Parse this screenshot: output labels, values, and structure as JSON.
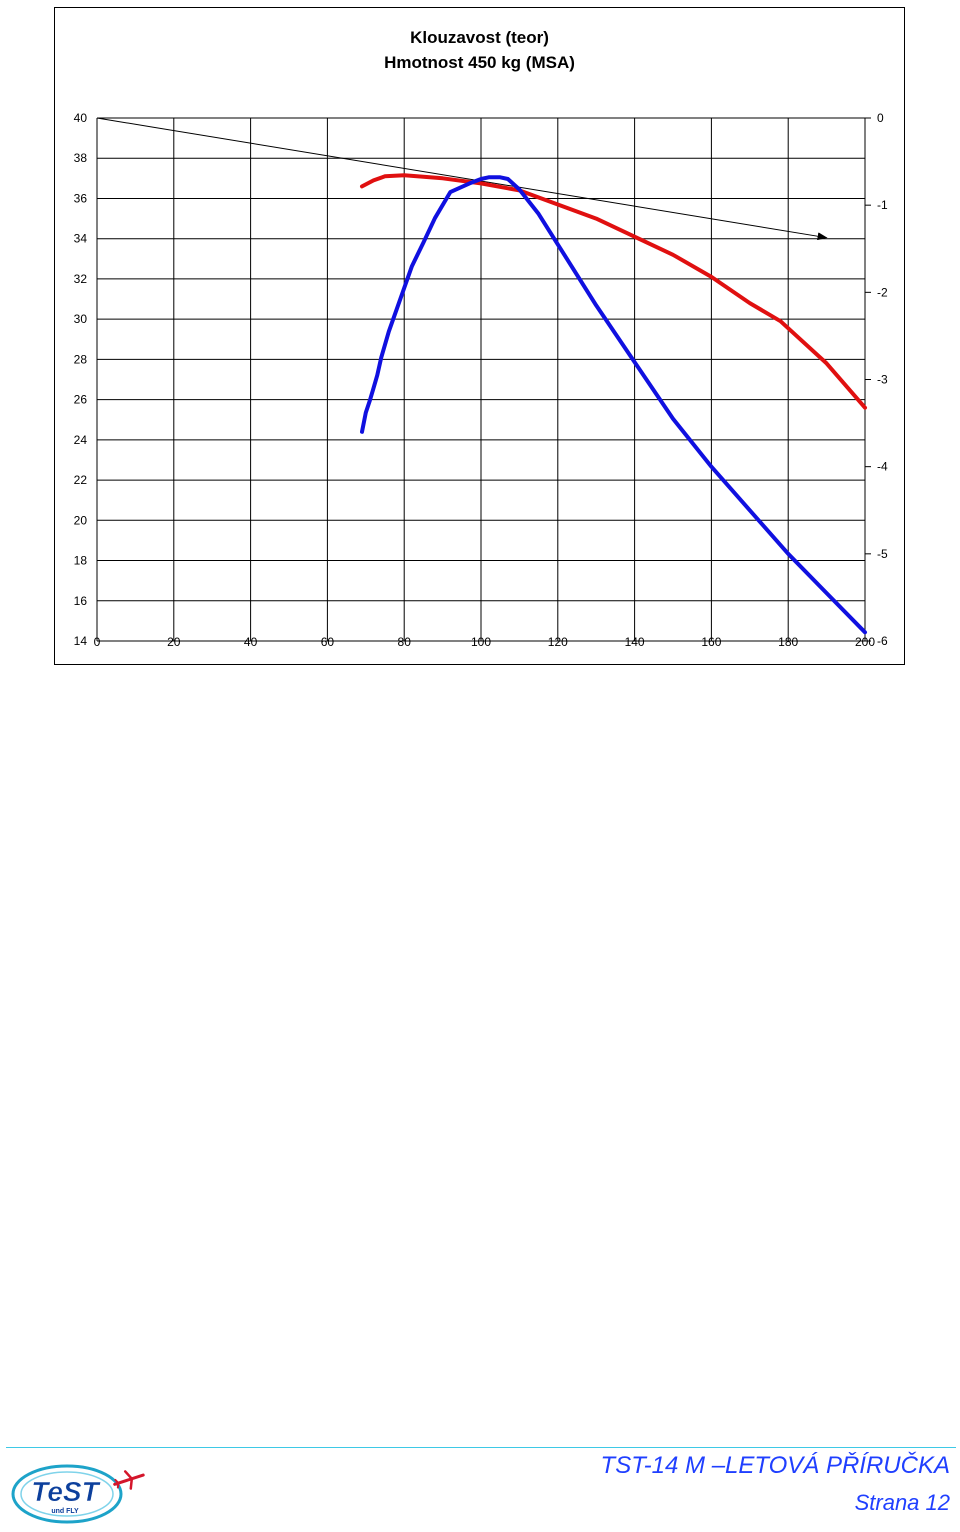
{
  "chart_data": {
    "type": "line",
    "title": "Klouzavost (teor)",
    "subtitle": "Hmotnost 450 kg (MSA)",
    "xlabel": "",
    "ylabel": "",
    "xlim": [
      0,
      200
    ],
    "ylim": [
      14,
      40
    ],
    "y2lim": [
      -6,
      0
    ],
    "x_ticks": [
      "0",
      "20",
      "40",
      "60",
      "80",
      "100",
      "120",
      "140",
      "160",
      "180",
      "200"
    ],
    "y_ticks": [
      "14",
      "16",
      "18",
      "20",
      "22",
      "24",
      "26",
      "28",
      "30",
      "32",
      "34",
      "36",
      "38",
      "40"
    ],
    "y2_ticks": [
      "0",
      "-1",
      "-2",
      "-3",
      "-4",
      "-5",
      "-6"
    ],
    "grid": true,
    "series": [
      {
        "axis": "left",
        "color": "#e01010",
        "x": [
          69,
          72,
          75,
          80,
          90,
          100,
          110,
          120,
          130,
          140,
          150,
          160,
          170,
          178,
          190,
          200
        ],
        "y": [
          36.6,
          36.9,
          37.1,
          37.15,
          37.0,
          36.75,
          36.4,
          35.7,
          35.0,
          34.1,
          33.2,
          32.1,
          30.8,
          29.9,
          27.8,
          25.6
        ]
      },
      {
        "axis": "right",
        "color": "#1010e0",
        "x": [
          69,
          70,
          71,
          72,
          73,
          74,
          76,
          78,
          80,
          82,
          85,
          88,
          92,
          97,
          100,
          102,
          105,
          107,
          110,
          115,
          120,
          130,
          140,
          150,
          160,
          170,
          180,
          190,
          200
        ],
        "y": [
          -3.6,
          -3.38,
          -3.25,
          -3.1,
          -2.95,
          -2.75,
          -2.45,
          -2.2,
          -1.95,
          -1.7,
          -1.43,
          -1.15,
          -0.85,
          -0.75,
          -0.7,
          -0.68,
          -0.68,
          -0.7,
          -0.82,
          -1.1,
          -1.45,
          -2.15,
          -2.8,
          -3.45,
          -4.0,
          -4.5,
          -5.0,
          -5.45,
          -5.9
        ]
      }
    ],
    "reference_line": {
      "axis": "left",
      "color": "#000000",
      "x": [
        0,
        190
      ],
      "y": [
        40,
        34.05
      ]
    }
  },
  "footer": {
    "title": "TST-14 M –LETOVÁ PŘÍRUČKA",
    "page": "Strana 12",
    "accent_color": "#1f3fff",
    "rule_color": "#3ec9e6"
  },
  "logo": {
    "text": "TeST",
    "subtext": "und FLY",
    "icon": "airplane-icon"
  }
}
